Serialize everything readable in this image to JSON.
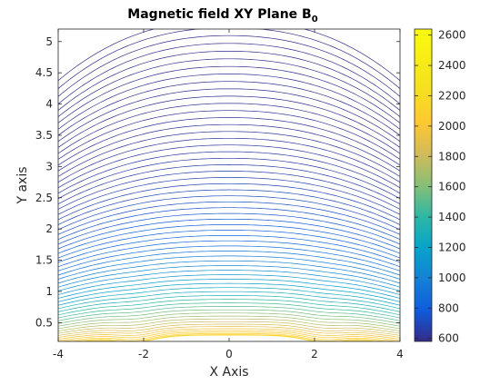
{
  "chart_data": {
    "type": "contour",
    "title": "Magnetic field XY Plane B",
    "title_subscript": "0",
    "xlabel": "X Axis",
    "ylabel": "Y axis",
    "xlim": [
      -4,
      4
    ],
    "ylim": [
      0.2,
      5.2
    ],
    "x_ticks": [
      -4,
      -2,
      0,
      2,
      4
    ],
    "x_tick_labels": [
      "-4",
      "-2",
      "0",
      "2",
      "4"
    ],
    "y_ticks": [
      0.5,
      1,
      1.5,
      2,
      2.5,
      3,
      3.5,
      4,
      4.5,
      5
    ],
    "y_tick_labels": [
      "0.5",
      "1",
      "1.5",
      "2",
      "2.5",
      "3",
      "3.5",
      "4",
      "4.5",
      "5"
    ],
    "colorbar": {
      "colormap": "parula",
      "range": [
        580,
        2640
      ],
      "ticks": [
        600,
        800,
        1000,
        1200,
        1400,
        1600,
        1800,
        2000,
        2200,
        2400,
        2600
      ],
      "tick_labels": [
        "600",
        "800",
        "1000",
        "1200",
        "1400",
        "1600",
        "1800",
        "2000",
        "2200",
        "2400",
        "2600"
      ]
    },
    "grid": false,
    "legend": "none"
  }
}
